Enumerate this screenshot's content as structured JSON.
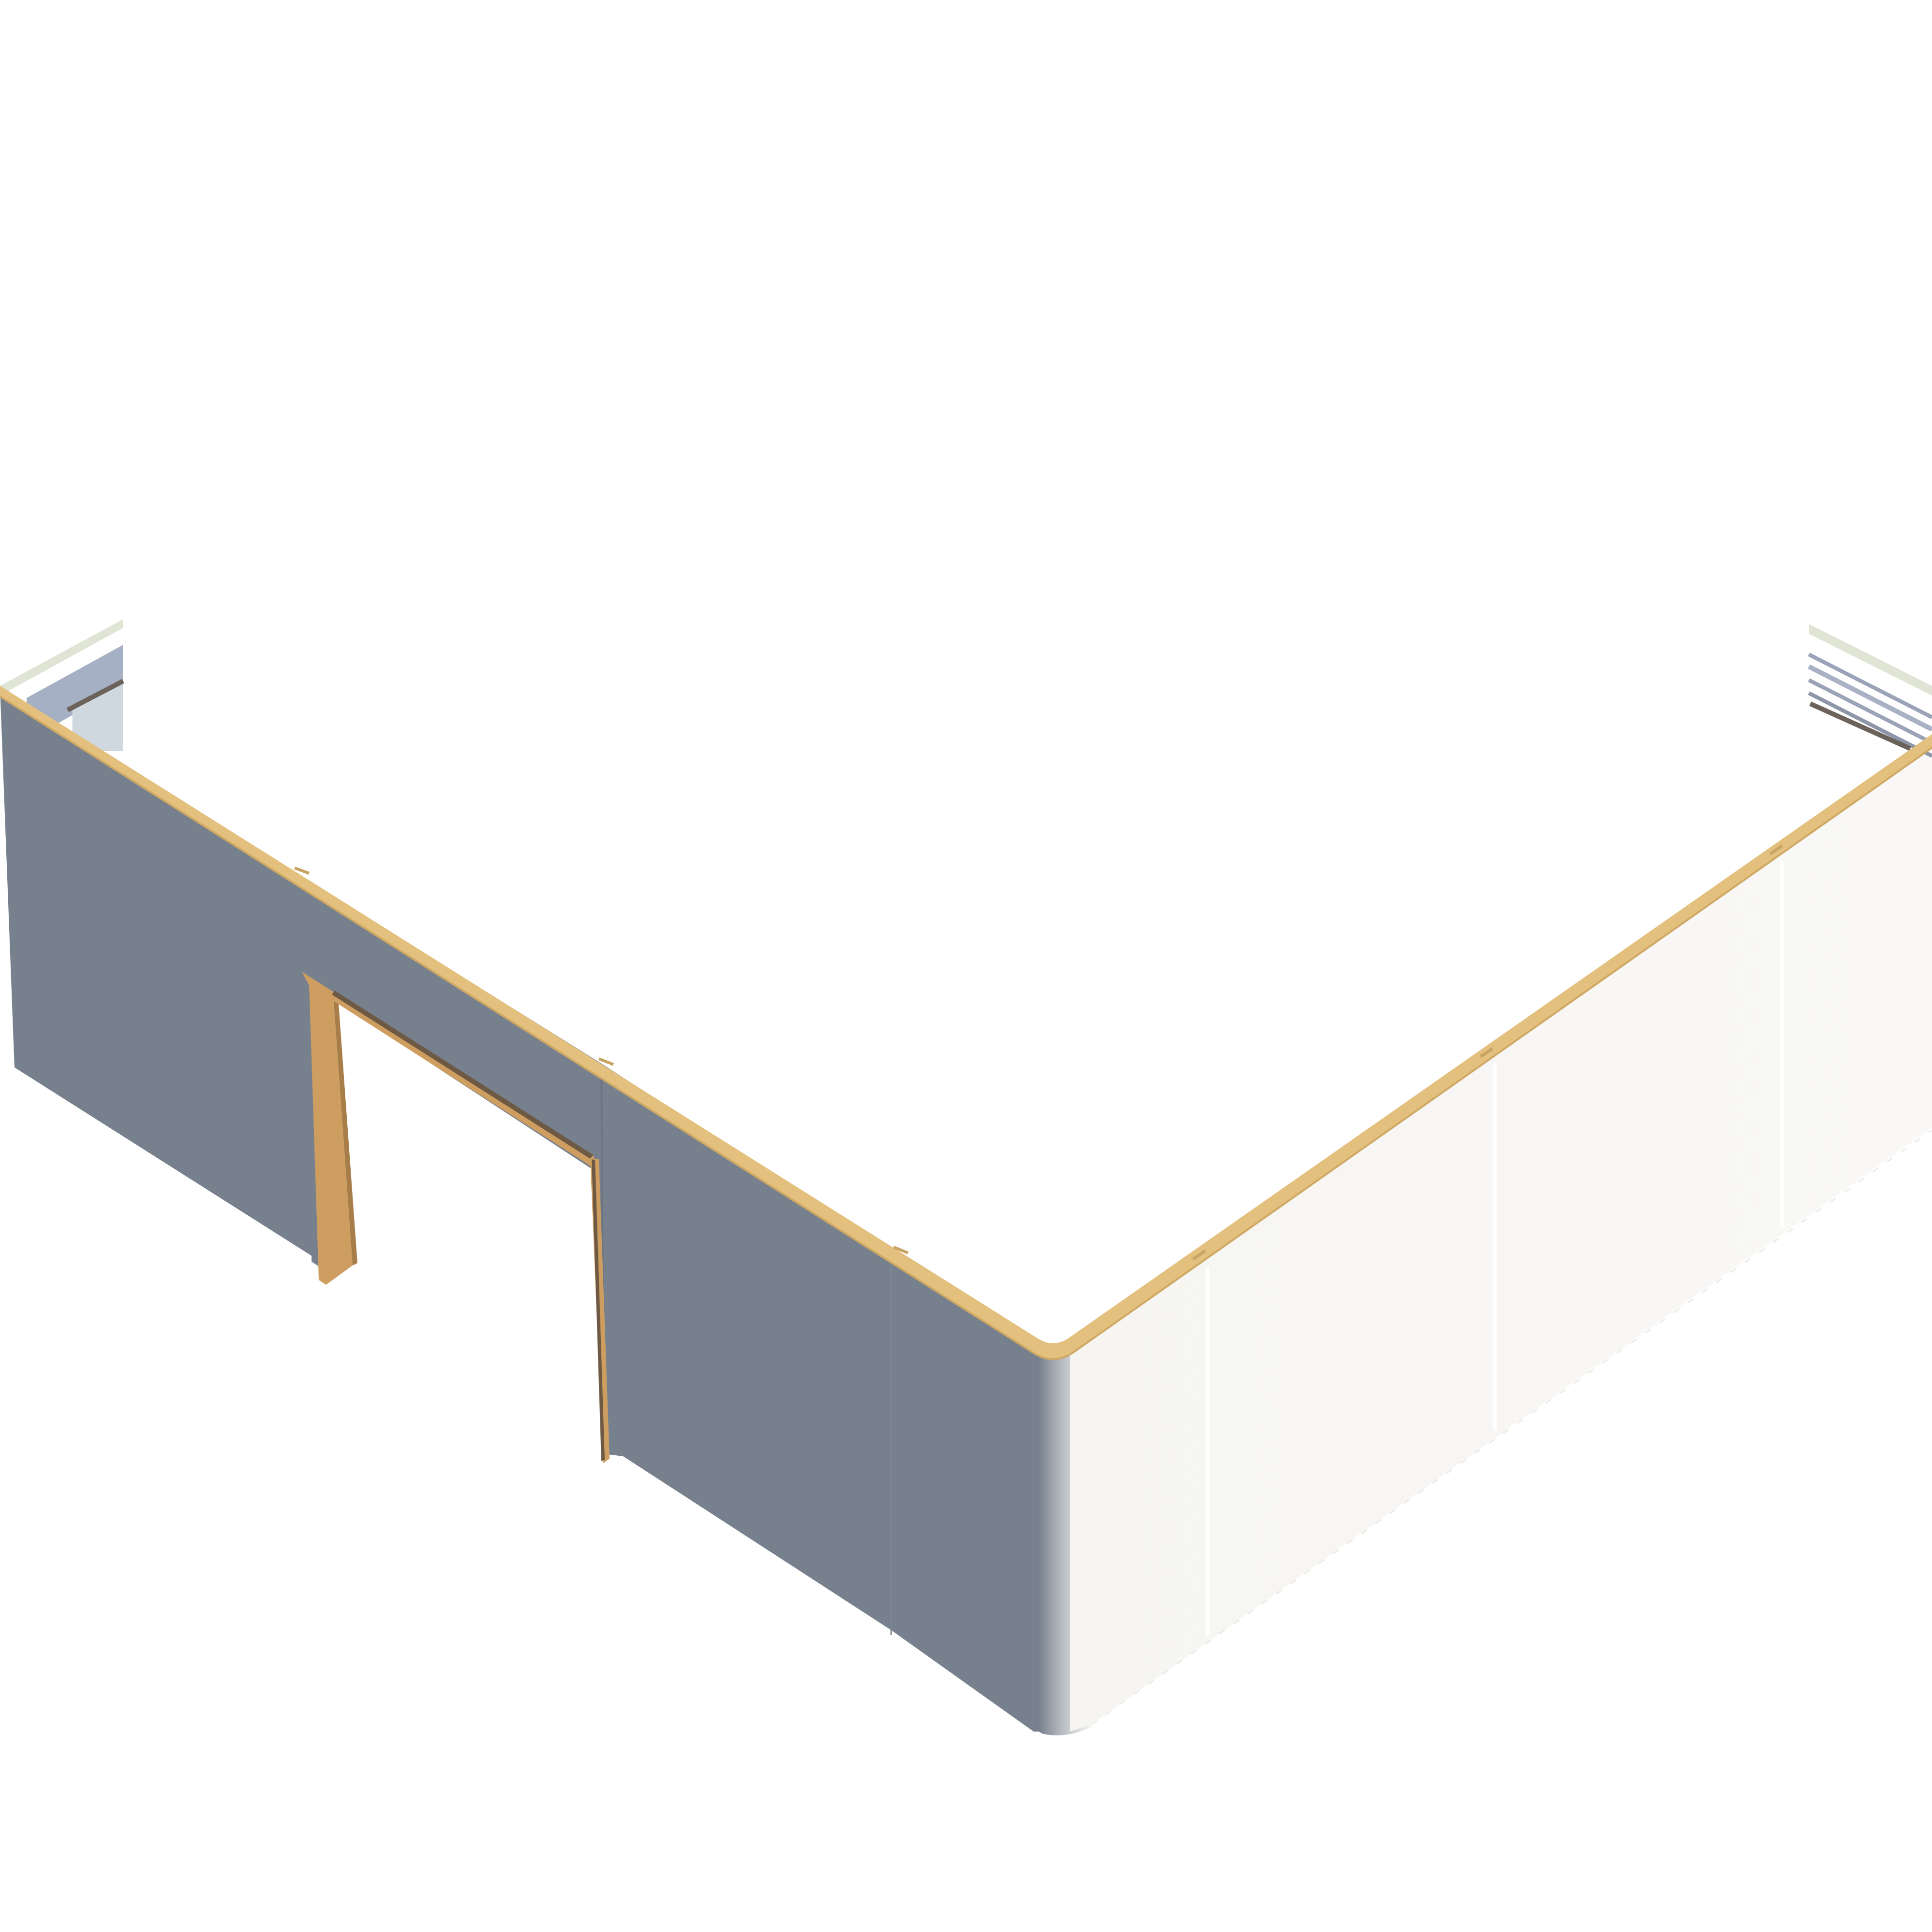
{
  "scene": {
    "type": "isometric-wall-cutaway",
    "colors": {
      "background": "#ffffff",
      "left_wall_face": "#77808d",
      "right_wall_face": "#f7f6f3",
      "top_cap": "#e3c07d",
      "door_frame": "#cd9e60",
      "door_frame_shadow": "#6e5a44",
      "cut_layers_light": "#dfe4d5",
      "cut_layers_blue": "#9aa3b7",
      "cut_layers_dark": "#6b625a"
    },
    "elements": {
      "left_wall": {
        "has_door_opening": true
      },
      "right_wall": {
        "panel_count": 3
      },
      "left_end_section": {
        "layered": true
      },
      "right_end_section": {
        "layered": true
      }
    }
  }
}
